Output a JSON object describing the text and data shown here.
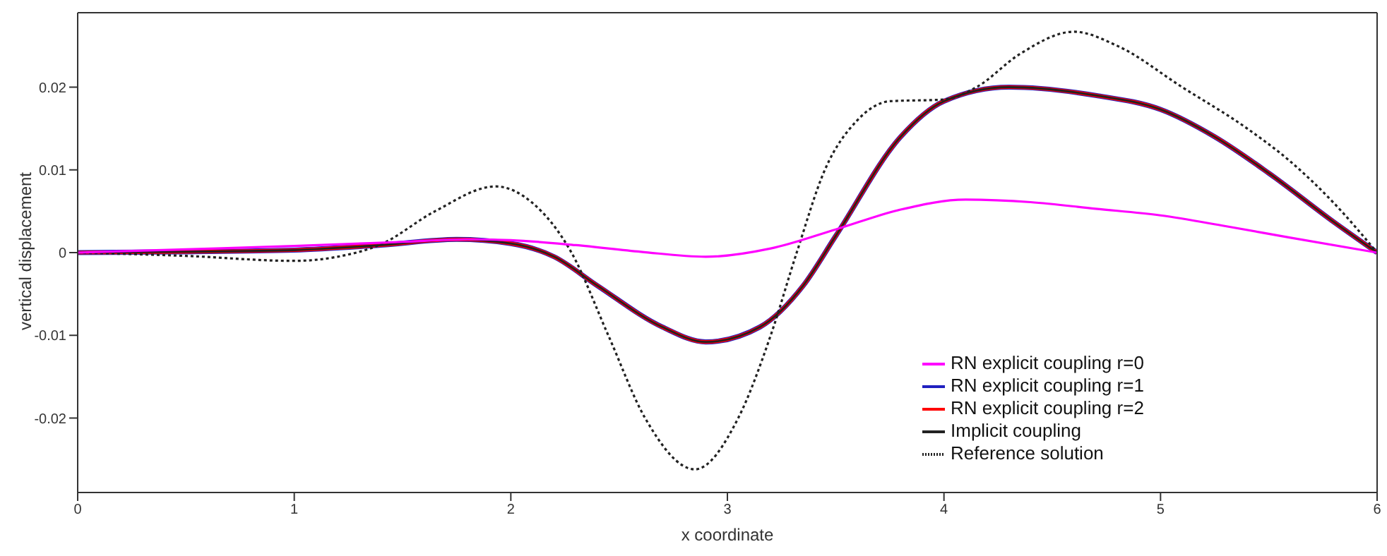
{
  "chart_data": {
    "type": "line",
    "xlabel": "x coordinate",
    "ylabel": "vertical displacement",
    "xlim": [
      0,
      6
    ],
    "xticks": [
      0,
      1,
      2,
      3,
      4,
      5,
      6
    ],
    "ylim": [
      -0.029,
      0.029
    ],
    "yticks": [
      -0.02,
      -0.01,
      0,
      0.01,
      0.02
    ],
    "legend": "bottom right",
    "marker": "none",
    "series": [
      {
        "name": "RN explicit coupling r=0",
        "color": "#ff00ff",
        "line_style": "solid",
        "x": [
          0,
          0.5,
          1,
          1.5,
          1.8,
          2.0,
          2.3,
          2.6,
          2.9,
          3.2,
          3.5,
          3.8,
          4.1,
          4.4,
          4.7,
          5.0,
          5.3,
          5.6,
          6
        ],
        "values": [
          0,
          0.0004,
          0.0008,
          0.0013,
          0.0016,
          0.0015,
          0.0009,
          0.0001,
          -0.0005,
          0.0005,
          0.0028,
          0.0052,
          0.0064,
          0.0061,
          0.0053,
          0.0045,
          0.0032,
          0.0018,
          0
        ]
      },
      {
        "name": "RN explicit coupling r=1",
        "color": "#2020c0",
        "line_style": "solid",
        "x": [
          0,
          0.5,
          1,
          1.4,
          1.75,
          2.0,
          2.2,
          2.4,
          2.7,
          2.9,
          3.15,
          3.35,
          3.5,
          3.8,
          4.0,
          4.3,
          4.7,
          5.0,
          5.25,
          5.5,
          5.8,
          6
        ],
        "values": [
          0,
          0.0001,
          0.0003,
          0.0009,
          0.0016,
          0.0011,
          -0.0005,
          -0.004,
          -0.009,
          -0.0108,
          -0.009,
          -0.004,
          0.002,
          0.014,
          0.0183,
          0.02,
          0.019,
          0.0173,
          0.014,
          0.0096,
          0.0037,
          0
        ]
      },
      {
        "name": "RN explicit coupling r=2",
        "color": "#ff0000",
        "line_style": "solid",
        "x": [
          0,
          0.5,
          1,
          1.4,
          1.75,
          2.0,
          2.2,
          2.4,
          2.7,
          2.9,
          3.15,
          3.35,
          3.5,
          3.8,
          4.0,
          4.3,
          4.7,
          5.0,
          5.25,
          5.5,
          5.8,
          6
        ],
        "values": [
          0,
          0.0001,
          0.0003,
          0.0009,
          0.0016,
          0.0011,
          -0.0005,
          -0.004,
          -0.009,
          -0.0108,
          -0.009,
          -0.004,
          0.002,
          0.014,
          0.0183,
          0.02,
          0.019,
          0.0173,
          0.014,
          0.0096,
          0.0037,
          0
        ]
      },
      {
        "name": "Implicit coupling",
        "color": "#222222",
        "line_style": "solid",
        "x": [
          0,
          0.5,
          1,
          1.4,
          1.75,
          2.0,
          2.2,
          2.4,
          2.7,
          2.9,
          3.15,
          3.35,
          3.5,
          3.8,
          4.0,
          4.3,
          4.7,
          5.0,
          5.25,
          5.5,
          5.8,
          6
        ],
        "values": [
          0,
          0.0001,
          0.0003,
          0.0009,
          0.0016,
          0.0011,
          -0.0005,
          -0.004,
          -0.009,
          -0.0108,
          -0.009,
          -0.004,
          0.002,
          0.014,
          0.0183,
          0.02,
          0.019,
          0.0173,
          0.014,
          0.0096,
          0.0037,
          0
        ]
      },
      {
        "name": "Reference solution",
        "color": "#222222",
        "line_style": "dotted",
        "x": [
          0,
          0.5,
          1.0,
          1.2,
          1.4,
          1.65,
          1.93,
          2.1,
          2.28,
          2.45,
          2.62,
          2.85,
          3.05,
          3.2,
          3.32,
          3.45,
          3.6,
          3.75,
          4.0,
          4.15,
          4.35,
          4.6,
          4.8,
          5.1,
          5.4,
          5.6,
          5.8,
          6
        ],
        "values": [
          0,
          -0.0004,
          -0.001,
          -0.0005,
          0.001,
          0.005,
          0.008,
          0.006,
          0,
          -0.01,
          -0.02,
          -0.0262,
          -0.02,
          -0.01,
          0,
          0.01,
          0.016,
          0.0183,
          0.0185,
          0.02,
          0.024,
          0.0267,
          0.025,
          0.02,
          0.015,
          0.011,
          0.006,
          0
        ]
      }
    ]
  }
}
